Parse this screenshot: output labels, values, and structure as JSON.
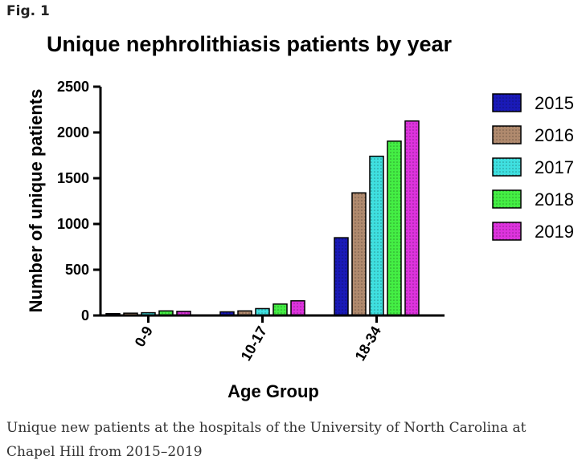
{
  "figure_label": "Fig. 1",
  "caption": "Unique new patients at the hospitals of the University of North Carolina at Chapel Hill from 2015–2019",
  "chart_data": {
    "type": "bar",
    "title": "Unique nephrolithiasis patients by year",
    "xlabel": "Age Group",
    "ylabel": "Number of unique patients",
    "categories": [
      "0-9",
      "10-17",
      "18-34"
    ],
    "ylim": [
      0,
      2500
    ],
    "yticks": [
      "0",
      "500",
      "1000",
      "1500",
      "2000",
      "2500"
    ],
    "grid": false,
    "legend_position": "right",
    "series": [
      {
        "name": "2015",
        "color": "#1a1ab8",
        "values": [
          20,
          40,
          850
        ]
      },
      {
        "name": "2016",
        "color": "#b08a6e",
        "values": [
          25,
          50,
          1340
        ]
      },
      {
        "name": "2017",
        "color": "#3fe0e0",
        "values": [
          30,
          75,
          1740
        ]
      },
      {
        "name": "2018",
        "color": "#44ee44",
        "values": [
          50,
          125,
          1905
        ]
      },
      {
        "name": "2019",
        "color": "#dd33dd",
        "values": [
          45,
          160,
          2125
        ]
      }
    ]
  }
}
